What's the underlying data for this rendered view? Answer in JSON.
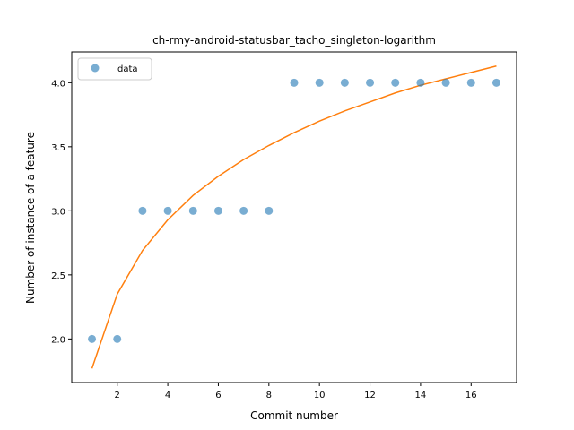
{
  "chart_data": {
    "type": "scatter",
    "title": "ch-rmy-android-statusbar_tacho_singleton-logarithm",
    "xlabel": "Commit number",
    "ylabel": "Number of instance of a feature",
    "xlim": [
      0.2,
      17.8
    ],
    "ylim": [
      1.66,
      4.24
    ],
    "xticks": [
      2,
      4,
      6,
      8,
      10,
      12,
      14,
      16
    ],
    "yticks": [
      2.0,
      2.5,
      3.0,
      3.5,
      4.0
    ],
    "ytick_labels": [
      "2.0",
      "2.5",
      "3.0",
      "3.5",
      "4.0"
    ],
    "grid": false,
    "legend_position": "upper-left",
    "series": [
      {
        "name": "data",
        "kind": "scatter",
        "color": "#1f77b4",
        "x": [
          1,
          2,
          3,
          4,
          5,
          6,
          7,
          8,
          9,
          10,
          11,
          12,
          13,
          14,
          15,
          16,
          17
        ],
        "y": [
          2,
          2,
          3,
          3,
          3,
          3,
          3,
          3,
          4,
          4,
          4,
          4,
          4,
          4,
          4,
          4,
          4
        ]
      },
      {
        "kind": "line",
        "color": "#ff7f0e",
        "x": [
          1,
          2,
          3,
          4,
          5,
          6,
          7,
          8,
          9,
          10,
          11,
          12,
          13,
          14,
          15,
          16,
          17
        ],
        "y": [
          1.77,
          2.35,
          2.69,
          2.93,
          3.12,
          3.27,
          3.4,
          3.51,
          3.61,
          3.7,
          3.78,
          3.85,
          3.92,
          3.98,
          4.03,
          4.08,
          4.13
        ]
      }
    ]
  }
}
